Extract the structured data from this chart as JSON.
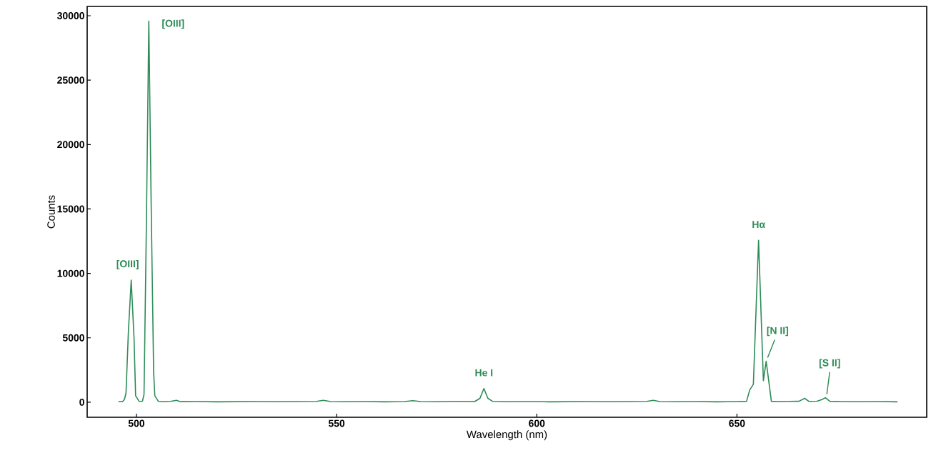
{
  "chart_data": {
    "type": "line",
    "xlabel": "Wavelength (nm)",
    "ylabel": "Counts",
    "xlim": [
      487.7,
      697.4
    ],
    "ylim": [
      -1170,
      30720
    ],
    "xticks": [
      500,
      550,
      600,
      650
    ],
    "yticks": [
      0,
      5000,
      10000,
      15000,
      20000,
      25000,
      30000
    ],
    "marker": "none",
    "line_style": "solid",
    "series": [
      {
        "color": "#2e8b57",
        "x": [
          495.5,
          496.5,
          497.0,
          497.4,
          498.0,
          498.7,
          499.4,
          499.8,
          500.7,
          501.5,
          501.9,
          502.5,
          503.1,
          503.7,
          504.3,
          504.6,
          505.5,
          507.0,
          508.5,
          510.0,
          511.0,
          515.0,
          520.0,
          525.0,
          530.0,
          535.0,
          540.0,
          545.0,
          546.7,
          548.5,
          552.0,
          557.0,
          562.0,
          567.0,
          569.0,
          571.0,
          575.0,
          580.0,
          584.5,
          585.8,
          586.8,
          587.8,
          589.0,
          593.0,
          598.0,
          603.0,
          608.0,
          613.0,
          618.0,
          623.0,
          627.5,
          629.1,
          630.7,
          635.0,
          640.0,
          645.0,
          650.0,
          652.4,
          653.2,
          654.1,
          655.4,
          656.6,
          657.3,
          658.6,
          660.0,
          663.0,
          665.5,
          666.9,
          668.0,
          670.0,
          671.2,
          672.1,
          673.2,
          676.0,
          680.0,
          685.0,
          690.1
        ],
        "values": [
          50,
          40,
          200,
          700,
          5500,
          9470,
          5000,
          500,
          60,
          80,
          600,
          14000,
          29580,
          15000,
          2330,
          500,
          60,
          40,
          60,
          150,
          40,
          50,
          30,
          40,
          50,
          40,
          50,
          60,
          150,
          50,
          40,
          50,
          30,
          50,
          120,
          50,
          40,
          60,
          50,
          300,
          1060,
          300,
          60,
          40,
          50,
          30,
          40,
          50,
          40,
          50,
          60,
          150,
          50,
          40,
          50,
          30,
          50,
          70,
          960,
          1390,
          12570,
          1670,
          3180,
          70,
          50,
          60,
          70,
          300,
          60,
          80,
          200,
          350,
          70,
          50,
          40,
          50,
          30
        ]
      }
    ],
    "annotations": [
      {
        "text": "[OIII]",
        "x": 498.7,
        "y": 9470
      },
      {
        "text": "[OIII]",
        "x": 503.1,
        "y": 29580
      },
      {
        "text": "He I",
        "x": 586.8,
        "y": 1060
      },
      {
        "text": "Hα",
        "x": 655.4,
        "y": 12570
      },
      {
        "text": "[N II]",
        "x": 657.3,
        "y": 3180
      },
      {
        "text": "[S II]",
        "x": 672.1,
        "y": 350
      }
    ]
  }
}
